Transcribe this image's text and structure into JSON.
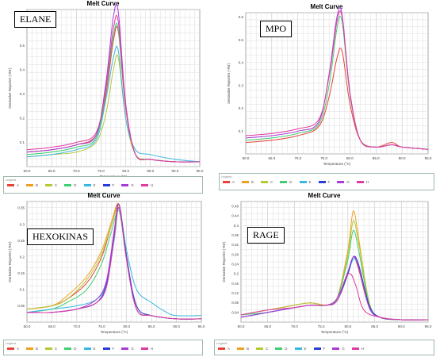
{
  "chart_title": "Melt Curve",
  "x_label": "Temperature (°C)",
  "y_label": "Derivative Reporter (-Rn')",
  "legend_label": "Legend",
  "well_colors": {
    "A": "#e8413a",
    "B": "#f0a020",
    "C": "#b5c832",
    "D": "#3cd070",
    "E": "#38b8e0",
    "F": "#2a3cd8",
    "G": "#a83ad8",
    "H": "#e03aa0"
  },
  "chart_data": [
    {
      "type": "line",
      "gene_label": "ELANE",
      "title": "Melt Curve",
      "xlabel": "Temperature (°C)",
      "ylabel": "Derivative Reporter (-Rn')",
      "xlim": [
        60,
        95
      ],
      "ylim": [
        0,
        0.65
      ],
      "xticks": [
        "60.0",
        "65.0",
        "70.0",
        "75.0",
        "80.0",
        "85.0",
        "90.0",
        "95.0"
      ],
      "yticks": [
        {
          "v": 0.1,
          "t": "0.1"
        },
        {
          "v": 0.2,
          "t": "0.2"
        },
        {
          "v": 0.3,
          "t": "0.3"
        },
        {
          "v": 0.4,
          "t": "0.4"
        },
        {
          "v": 0.5,
          "t": "0.5"
        },
        {
          "v": 0.6,
          "t": "0.6"
        }
      ],
      "legend": [
        "A",
        "B",
        "C",
        "D",
        "E",
        "F",
        "G",
        "H"
      ],
      "series": [
        {
          "well": "A",
          "x": [
            60,
            65,
            70,
            74,
            76,
            77.5,
            78.5,
            80,
            82,
            85,
            90,
            95
          ],
          "y": [
            0.06,
            0.07,
            0.09,
            0.13,
            0.3,
            0.52,
            0.56,
            0.24,
            0.05,
            0.03,
            0.02,
            0.02
          ]
        },
        {
          "well": "C",
          "x": [
            60,
            65,
            70,
            74,
            76,
            77.5,
            78.5,
            80,
            82,
            85,
            90,
            95
          ],
          "y": [
            0.04,
            0.05,
            0.06,
            0.1,
            0.22,
            0.4,
            0.45,
            0.2,
            0.05,
            0.03,
            0.02,
            0.02
          ]
        },
        {
          "well": "D",
          "x": [
            60,
            65,
            70,
            74,
            76,
            77.5,
            78.5,
            80,
            82,
            85,
            90,
            95
          ],
          "y": [
            0.05,
            0.06,
            0.08,
            0.12,
            0.32,
            0.54,
            0.57,
            0.25,
            0.05,
            0.03,
            0.02,
            0.02
          ]
        },
        {
          "well": "E",
          "x": [
            60,
            65,
            70,
            74,
            76,
            77.5,
            78.5,
            80,
            82,
            85,
            90,
            95
          ],
          "y": [
            0.04,
            0.05,
            0.07,
            0.11,
            0.28,
            0.45,
            0.48,
            0.2,
            0.07,
            0.05,
            0.03,
            0.02
          ]
        },
        {
          "well": "G",
          "x": [
            60,
            65,
            70,
            74,
            76,
            77.5,
            78.5,
            80,
            82,
            85,
            90,
            95
          ],
          "y": [
            0.06,
            0.07,
            0.09,
            0.13,
            0.35,
            0.62,
            0.64,
            0.26,
            0.05,
            0.03,
            0.02,
            0.02
          ]
        },
        {
          "well": "H",
          "x": [
            60,
            65,
            70,
            74,
            76,
            77.5,
            78.5,
            80,
            82,
            85,
            90,
            95
          ],
          "y": [
            0.07,
            0.08,
            0.1,
            0.14,
            0.33,
            0.57,
            0.6,
            0.25,
            0.05,
            0.03,
            0.02,
            0.02
          ]
        }
      ]
    },
    {
      "type": "line",
      "gene_label": "MPO",
      "title": "Melt Curve",
      "xlabel": "Temperature (°C)",
      "ylabel": "Derivative Reporter (-Rn')",
      "xlim": [
        60,
        95
      ],
      "ylim": [
        0,
        0.62
      ],
      "xticks": [
        "60.0",
        "65.0",
        "70.0",
        "75.0",
        "80.0",
        "85.0",
        "90.0",
        "95.0"
      ],
      "yticks": [
        {
          "v": 0.1,
          "t": "0.1"
        },
        {
          "v": 0.2,
          "t": "0.2"
        },
        {
          "v": 0.3,
          "t": "0.3"
        },
        {
          "v": 0.4,
          "t": "0.4"
        },
        {
          "v": 0.5,
          "t": "0.5"
        },
        {
          "v": 0.6,
          "t": "0.6"
        }
      ],
      "legend": [
        "A",
        "B",
        "C",
        "D",
        "E",
        "F",
        "G",
        "H"
      ],
      "series": [
        {
          "well": "A",
          "x": [
            60,
            65,
            70,
            74,
            76,
            77.5,
            78.5,
            80,
            82,
            85,
            88,
            90,
            95
          ],
          "y": [
            0.05,
            0.06,
            0.08,
            0.12,
            0.25,
            0.42,
            0.45,
            0.22,
            0.06,
            0.03,
            0.05,
            0.03,
            0.02
          ]
        },
        {
          "well": "D",
          "x": [
            60,
            65,
            70,
            74,
            76,
            77.5,
            78.5,
            80,
            82,
            85,
            88,
            90,
            95
          ],
          "y": [
            0.06,
            0.07,
            0.09,
            0.13,
            0.3,
            0.55,
            0.58,
            0.26,
            0.06,
            0.03,
            0.04,
            0.03,
            0.02
          ]
        },
        {
          "well": "G",
          "x": [
            60,
            65,
            70,
            74,
            76,
            77.5,
            78.5,
            80,
            82,
            85,
            88,
            90,
            95
          ],
          "y": [
            0.07,
            0.08,
            0.1,
            0.14,
            0.35,
            0.6,
            0.61,
            0.27,
            0.06,
            0.03,
            0.04,
            0.03,
            0.02
          ]
        },
        {
          "well": "H",
          "x": [
            60,
            65,
            70,
            74,
            76,
            77.5,
            78.5,
            80,
            82,
            85,
            88,
            90,
            95
          ],
          "y": [
            0.08,
            0.09,
            0.11,
            0.15,
            0.34,
            0.58,
            0.6,
            0.27,
            0.06,
            0.03,
            0.04,
            0.03,
            0.02
          ]
        }
      ]
    },
    {
      "type": "line",
      "gene_label": "HEXOKINAS",
      "title": "Melt Curve",
      "xlabel": "Temperature (°C)",
      "ylabel": "Derivative Reporter (-Rn')",
      "xlim": [
        60,
        95
      ],
      "ylim": [
        0,
        0.37
      ],
      "xticks": [
        "60.0",
        "65.0",
        "70.0",
        "75.0",
        "80.0",
        "85.0",
        "90.0",
        "95.0"
      ],
      "yticks": [
        {
          "v": 0.05,
          "t": "0.05"
        },
        {
          "v": 0.1,
          "t": "0.1"
        },
        {
          "v": 0.15,
          "t": "0.15"
        },
        {
          "v": 0.2,
          "t": "0.2"
        },
        {
          "v": 0.25,
          "t": "0.25"
        },
        {
          "v": 0.3,
          "t": "0.3"
        },
        {
          "v": 0.35,
          "t": "0.35"
        }
      ],
      "legend": [
        "A",
        "B",
        "C",
        "D",
        "E",
        "F",
        "G",
        "H"
      ],
      "series": [
        {
          "well": "A",
          "x": [
            60,
            65,
            68,
            72,
            75,
            77,
            78.5,
            80,
            82,
            85,
            90,
            95
          ],
          "y": [
            0.04,
            0.05,
            0.07,
            0.12,
            0.2,
            0.3,
            0.36,
            0.2,
            0.04,
            0.02,
            0.01,
            0.01
          ]
        },
        {
          "well": "B",
          "x": [
            60,
            65,
            68,
            72,
            75,
            77,
            78.5,
            80,
            82,
            85,
            90,
            95
          ],
          "y": [
            0.04,
            0.05,
            0.08,
            0.14,
            0.22,
            0.31,
            0.36,
            0.2,
            0.04,
            0.02,
            0.01,
            0.01
          ]
        },
        {
          "well": "C",
          "x": [
            60,
            65,
            68,
            72,
            75,
            77,
            78.5,
            80,
            82,
            85,
            90,
            95
          ],
          "y": [
            0.04,
            0.05,
            0.07,
            0.13,
            0.21,
            0.3,
            0.35,
            0.2,
            0.04,
            0.02,
            0.01,
            0.01
          ]
        },
        {
          "well": "D",
          "x": [
            60,
            65,
            68,
            72,
            75,
            77,
            78.5,
            80,
            82,
            85,
            90,
            95
          ],
          "y": [
            0.03,
            0.04,
            0.06,
            0.1,
            0.18,
            0.28,
            0.34,
            0.19,
            0.04,
            0.02,
            0.01,
            0.01
          ]
        },
        {
          "well": "E",
          "x": [
            60,
            65,
            70,
            74,
            76,
            77.5,
            78.5,
            80,
            82,
            85,
            88,
            90,
            95
          ],
          "y": [
            0.03,
            0.04,
            0.05,
            0.07,
            0.12,
            0.25,
            0.35,
            0.22,
            0.1,
            0.06,
            0.03,
            0.02,
            0.02
          ]
        },
        {
          "well": "F",
          "x": [
            60,
            65,
            70,
            74,
            76,
            77.5,
            78.5,
            80,
            82,
            85,
            90,
            95
          ],
          "y": [
            0.03,
            0.03,
            0.04,
            0.06,
            0.12,
            0.27,
            0.36,
            0.2,
            0.05,
            0.02,
            0.01,
            0.01
          ]
        },
        {
          "well": "G",
          "x": [
            60,
            65,
            70,
            74,
            76,
            77.5,
            78.5,
            80,
            82,
            85,
            90,
            95
          ],
          "y": [
            0.03,
            0.03,
            0.04,
            0.07,
            0.13,
            0.28,
            0.36,
            0.19,
            0.04,
            0.02,
            0.01,
            0.01
          ]
        },
        {
          "well": "H",
          "x": [
            60,
            65,
            70,
            74,
            76,
            77.5,
            78.5,
            80,
            82,
            85,
            90,
            95
          ],
          "y": [
            0.03,
            0.03,
            0.04,
            0.06,
            0.11,
            0.26,
            0.35,
            0.19,
            0.04,
            0.02,
            0.01,
            0.01
          ]
        }
      ]
    },
    {
      "type": "line",
      "gene_label": "RAGE",
      "title": "Melt Curve",
      "xlabel": "Temperature (°C)",
      "ylabel": "Derivative Reporter (-Rn')",
      "xlim": [
        60,
        95
      ],
      "ylim": [
        0,
        0.5
      ],
      "xticks": [
        "60.0",
        "65.0",
        "70.0",
        "75.0",
        "80.0",
        "85.0",
        "90.0",
        "95.0"
      ],
      "yticks": [
        {
          "v": 0.04,
          "t": "0.04"
        },
        {
          "v": 0.08,
          "t": "0.08"
        },
        {
          "v": 0.12,
          "t": "0.12"
        },
        {
          "v": 0.16,
          "t": "0.16"
        },
        {
          "v": 0.2,
          "t": "0.2"
        },
        {
          "v": 0.24,
          "t": "0.24"
        },
        {
          "v": 0.28,
          "t": "0.28"
        },
        {
          "v": 0.32,
          "t": "0.32"
        },
        {
          "v": 0.36,
          "t": "0.36"
        },
        {
          "v": 0.4,
          "t": "0.4"
        },
        {
          "v": 0.44,
          "t": "0.44"
        },
        {
          "v": 0.48,
          "t": "0.48"
        }
      ],
      "legend": [
        "A",
        "B",
        "C",
        "D",
        "E",
        "F",
        "G",
        "H"
      ],
      "series": [
        {
          "well": "A",
          "x": [
            60,
            65,
            70,
            73,
            76,
            78,
            80,
            81,
            82,
            84,
            86,
            90,
            95
          ],
          "y": [
            0.03,
            0.05,
            0.07,
            0.08,
            0.07,
            0.09,
            0.2,
            0.27,
            0.22,
            0.06,
            0.02,
            0.01,
            0.01
          ]
        },
        {
          "well": "B",
          "x": [
            60,
            65,
            70,
            73,
            76,
            78,
            80,
            81,
            82,
            84,
            86,
            90,
            95
          ],
          "y": [
            0.03,
            0.05,
            0.07,
            0.08,
            0.07,
            0.1,
            0.3,
            0.46,
            0.35,
            0.08,
            0.02,
            0.01,
            0.01
          ]
        },
        {
          "well": "C",
          "x": [
            60,
            65,
            70,
            73,
            76,
            78,
            80,
            81,
            82,
            84,
            86,
            90,
            95
          ],
          "y": [
            0.03,
            0.05,
            0.07,
            0.08,
            0.07,
            0.1,
            0.28,
            0.42,
            0.33,
            0.08,
            0.02,
            0.01,
            0.01
          ]
        },
        {
          "well": "D",
          "x": [
            60,
            65,
            70,
            73,
            76,
            78,
            80,
            81,
            82,
            84,
            86,
            90,
            95
          ],
          "y": [
            0.03,
            0.04,
            0.06,
            0.07,
            0.07,
            0.1,
            0.26,
            0.38,
            0.3,
            0.07,
            0.02,
            0.01,
            0.01
          ]
        },
        {
          "well": "E",
          "x": [
            60,
            65,
            70,
            73,
            76,
            78,
            80,
            81,
            82,
            84,
            86,
            90,
            95
          ],
          "y": [
            0.02,
            0.04,
            0.06,
            0.07,
            0.07,
            0.09,
            0.2,
            0.26,
            0.23,
            0.07,
            0.02,
            0.01,
            0.01
          ]
        },
        {
          "well": "F",
          "x": [
            60,
            65,
            70,
            73,
            76,
            78,
            80,
            81,
            82,
            84,
            86,
            90,
            95
          ],
          "y": [
            0.02,
            0.04,
            0.06,
            0.07,
            0.07,
            0.09,
            0.2,
            0.27,
            0.24,
            0.07,
            0.02,
            0.01,
            0.01
          ]
        },
        {
          "well": "G",
          "x": [
            60,
            65,
            70,
            73,
            76,
            78,
            80,
            81,
            82,
            84,
            86,
            90,
            95
          ],
          "y": [
            0.02,
            0.04,
            0.06,
            0.07,
            0.07,
            0.1,
            0.21,
            0.27,
            0.23,
            0.06,
            0.02,
            0.01,
            0.01
          ]
        },
        {
          "well": "H",
          "x": [
            60,
            65,
            70,
            73,
            76,
            78,
            79.5,
            80.5,
            81.5,
            83,
            86,
            90,
            95
          ],
          "y": [
            0.03,
            0.05,
            0.06,
            0.07,
            0.07,
            0.09,
            0.18,
            0.2,
            0.15,
            0.05,
            0.02,
            0.01,
            0.01
          ]
        }
      ]
    }
  ]
}
